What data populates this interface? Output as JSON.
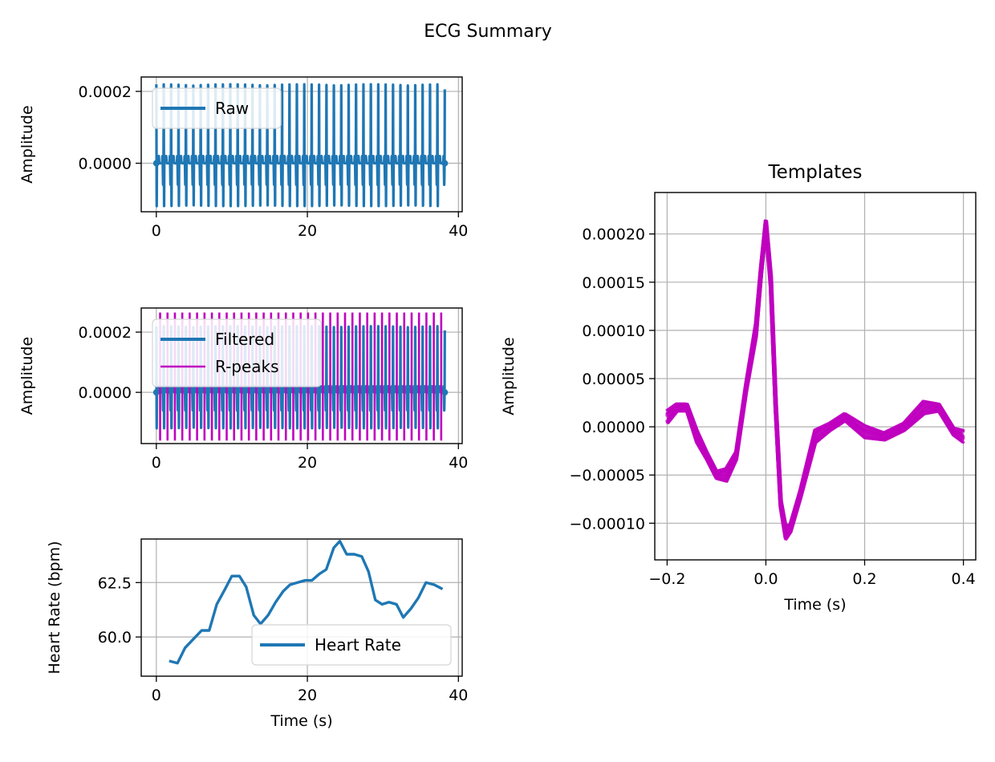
{
  "suptitle": "ECG Summary",
  "colors": {
    "blue": "#1f77b4",
    "magenta": "#bf00bf",
    "grid": "#b0b0b0"
  },
  "chart_data": [
    {
      "id": "raw",
      "type": "line",
      "title": "",
      "xlabel": "",
      "ylabel": "Amplitude",
      "xlim": [
        -2,
        40.5
      ],
      "ylim": [
        -0.000135,
        0.00024
      ],
      "xticks": [
        0,
        20,
        40
      ],
      "xtick_labels": [
        "0",
        "20",
        "40"
      ],
      "yticks": [
        0,
        0.0002
      ],
      "ytick_labels": [
        "0.0000",
        "0.0002"
      ],
      "grid": true,
      "legend": {
        "position": "upper-left",
        "entries": [
          "Raw"
        ]
      },
      "series": [
        {
          "name": "Raw",
          "kind": "ecg_signal",
          "duration_s": 38.2,
          "beats": 39,
          "peak_amplitude": 0.000215,
          "trough_amplitude": -0.00012
        }
      ]
    },
    {
      "id": "filtered",
      "type": "line",
      "title": "",
      "xlabel": "",
      "ylabel": "Amplitude",
      "xlim": [
        -2,
        40.5
      ],
      "ylim": [
        -0.00017,
        0.00028
      ],
      "xticks": [
        0,
        20,
        40
      ],
      "xtick_labels": [
        "0",
        "20",
        "40"
      ],
      "yticks": [
        0,
        0.0002
      ],
      "ytick_labels": [
        "0.0000",
        "0.0002"
      ],
      "grid": true,
      "legend": {
        "position": "upper-left",
        "entries": [
          "Filtered",
          "R-peaks"
        ]
      },
      "series": [
        {
          "name": "Filtered",
          "kind": "ecg_signal",
          "duration_s": 38.2,
          "beats": 39,
          "peak_amplitude": 0.000215,
          "trough_amplitude": -0.00012
        },
        {
          "name": "R-peaks",
          "kind": "vlines",
          "ymin": -0.00016,
          "ymax": 0.000265
        }
      ]
    },
    {
      "id": "heart_rate",
      "type": "line",
      "title": "",
      "xlabel": "Time (s)",
      "ylabel": "Heart Rate (bpm)",
      "xlim": [
        -2,
        40.5
      ],
      "ylim": [
        58.2,
        64.5
      ],
      "xticks": [
        0,
        20,
        40
      ],
      "xtick_labels": [
        "0",
        "20",
        "40"
      ],
      "yticks": [
        60.0,
        62.5
      ],
      "ytick_labels": [
        "60.0",
        "62.5"
      ],
      "grid": true,
      "legend": {
        "position": "lower-right",
        "entries": [
          "Heart Rate"
        ]
      },
      "series": [
        {
          "name": "Heart Rate",
          "x": [
            1.7,
            2.8,
            3.8,
            4.9,
            6.0,
            7.0,
            8.0,
            9.1,
            10.0,
            11.0,
            11.9,
            12.9,
            13.8,
            14.8,
            15.8,
            16.8,
            17.7,
            18.7,
            19.7,
            20.6,
            21.6,
            22.5,
            23.5,
            24.3,
            25.2,
            26.2,
            27.2,
            28.1,
            29.0,
            29.9,
            30.8,
            31.8,
            32.7,
            33.7,
            34.7,
            35.7,
            36.8,
            37.9
          ],
          "y": [
            58.9,
            58.8,
            59.5,
            59.9,
            60.3,
            60.3,
            61.5,
            62.2,
            62.8,
            62.8,
            62.3,
            61.0,
            60.6,
            61.0,
            61.6,
            62.1,
            62.4,
            62.5,
            62.6,
            62.6,
            62.9,
            63.1,
            64.1,
            64.4,
            63.8,
            63.8,
            63.7,
            63.0,
            61.7,
            61.5,
            61.6,
            61.5,
            60.9,
            61.3,
            61.8,
            62.5,
            62.4,
            62.2
          ]
        }
      ]
    },
    {
      "id": "templates",
      "type": "line",
      "title": "Templates",
      "xlabel": "Time (s)",
      "ylabel": "Amplitude",
      "xlim": [
        -0.225,
        0.425
      ],
      "ylim": [
        -0.000138,
        0.000243
      ],
      "xticks": [
        -0.2,
        0.0,
        0.2,
        0.4
      ],
      "xtick_labels": [
        "−0.2",
        "0.0",
        "0.2",
        "0.4"
      ],
      "yticks": [
        -0.0001,
        -5e-05,
        0,
        5e-05,
        0.0001,
        0.00015,
        0.0002
      ],
      "ytick_labels": [
        "−0.00010",
        "−0.00005",
        "0.00000",
        "0.00005",
        "0.00010",
        "0.00015",
        "0.00020"
      ],
      "grid": true,
      "legend": null,
      "series": [
        {
          "name": "",
          "count": 38,
          "x": [
            -0.2,
            -0.18,
            -0.16,
            -0.14,
            -0.12,
            -0.1,
            -0.08,
            -0.06,
            -0.04,
            -0.02,
            -0.01,
            0.0,
            0.01,
            0.02,
            0.03,
            0.04,
            0.05,
            0.07,
            0.1,
            0.13,
            0.16,
            0.2,
            0.24,
            0.28,
            0.32,
            0.35,
            0.38,
            0.4
          ],
          "y": [
            1e-05,
            2e-05,
            2e-05,
            -1e-05,
            -3e-05,
            -5e-05,
            -5e-05,
            -3e-05,
            4e-05,
            0.0001,
            0.00016,
            0.00021,
            0.00015,
            2e-05,
            -8e-05,
            -0.00011,
            -0.000105,
            -7e-05,
            -1e-05,
            0.0,
            1e-05,
            -5e-06,
            -1e-05,
            0.0,
            2e-05,
            2e-05,
            -5e-06,
            -1e-05
          ]
        }
      ]
    }
  ]
}
